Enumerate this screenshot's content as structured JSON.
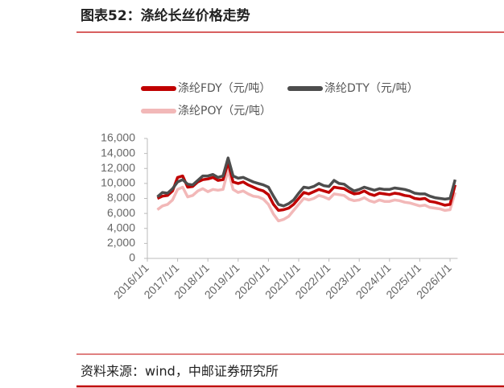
{
  "header": {
    "title": "图表52：涤纶长丝价格走势"
  },
  "chart_data": {
    "type": "line",
    "x": [
      "2016/5/1",
      "2016/7/1",
      "2016/9/1",
      "2016/11/1",
      "2017/1/1",
      "2017/3/1",
      "2017/5/1",
      "2017/7/1",
      "2017/9/1",
      "2017/11/1",
      "2018/1/1",
      "2018/3/1",
      "2018/5/1",
      "2018/7/1",
      "2018/9/1",
      "2018/11/1",
      "2019/1/1",
      "2019/3/1",
      "2019/5/1",
      "2019/7/1",
      "2019/9/1",
      "2019/11/1",
      "2020/1/1",
      "2020/3/1",
      "2020/5/1",
      "2020/7/1",
      "2020/9/1",
      "2020/11/1",
      "2021/1/1",
      "2021/3/1",
      "2021/5/1",
      "2021/7/1",
      "2021/9/1",
      "2021/11/1",
      "2022/1/1",
      "2022/3/1",
      "2022/5/1",
      "2022/7/1",
      "2022/9/1",
      "2022/11/1",
      "2023/1/1",
      "2023/3/1",
      "2023/5/1",
      "2023/7/1",
      "2023/9/1",
      "2023/11/1",
      "2024/1/1",
      "2024/3/1",
      "2024/5/1",
      "2024/7/1",
      "2024/9/1",
      "2024/11/1",
      "2025/1/1",
      "2025/3/1",
      "2025/5/1",
      "2025/7/1",
      "2025/9/1",
      "2025/11/1",
      "2026/1/1",
      "2026/3/1"
    ],
    "series": [
      {
        "name": "涤纶FDY（元/吨）",
        "color": "#c00000",
        "values": [
          8000,
          8300,
          8400,
          9000,
          10800,
          11000,
          9500,
          9600,
          10200,
          10500,
          10600,
          10800,
          10400,
          10500,
          12800,
          10200,
          10000,
          10200,
          9800,
          9500,
          9200,
          9000,
          8500,
          7200,
          6400,
          6500,
          6700,
          7200,
          8000,
          8800,
          8600,
          8900,
          9200,
          9000,
          8800,
          9500,
          9400,
          9300,
          8900,
          8600,
          8700,
          9000,
          8600,
          8400,
          8700,
          8600,
          8500,
          8700,
          8600,
          8400,
          8300,
          8000,
          7900,
          8000,
          7600,
          7500,
          7300,
          7100,
          7200,
          9800
        ]
      },
      {
        "name": "涤纶DTY（元/吨）",
        "color": "#4d4d4d",
        "values": [
          8200,
          8800,
          8700,
          9300,
          10200,
          10500,
          9900,
          9800,
          10400,
          11000,
          11000,
          11200,
          10800,
          11000,
          13400,
          11000,
          10700,
          10800,
          10500,
          10200,
          10000,
          9800,
          9500,
          8300,
          7200,
          7000,
          7300,
          7800,
          8700,
          9500,
          9400,
          9600,
          10000,
          9700,
          9600,
          10400,
          10000,
          9900,
          9400,
          9000,
          9200,
          9500,
          9300,
          9100,
          9300,
          9200,
          9200,
          9400,
          9300,
          9200,
          9000,
          8700,
          8600,
          8600,
          8300,
          8100,
          8000,
          7900,
          8000,
          10500
        ]
      },
      {
        "name": "涤纶POY（元/吨）",
        "color": "#f2b8b8",
        "values": [
          6500,
          7000,
          7200,
          7800,
          9200,
          9500,
          8200,
          8400,
          9000,
          9300,
          8900,
          9200,
          9100,
          9200,
          11800,
          9200,
          8800,
          9000,
          8600,
          8300,
          8200,
          7900,
          7200,
          5900,
          5000,
          5200,
          5600,
          6400,
          7200,
          8000,
          7800,
          8000,
          8400,
          8200,
          7900,
          8600,
          8500,
          8400,
          7900,
          7700,
          7800,
          8100,
          7700,
          7500,
          7800,
          7600,
          7600,
          7800,
          7700,
          7500,
          7400,
          7200,
          7000,
          7100,
          6800,
          6700,
          6600,
          6400,
          6500,
          8800
        ]
      }
    ],
    "xlim": [
      "2016/1/1",
      "2026/4/1"
    ],
    "xticks": [
      "2016/1/1",
      "2017/1/1",
      "2018/1/1",
      "2019/1/1",
      "2020/1/1",
      "2021/1/1",
      "2022/1/1",
      "2023/1/1",
      "2024/1/1",
      "2025/1/1",
      "2026/1/1"
    ],
    "ylim": [
      0,
      16000
    ],
    "yticks": [
      0,
      {
        "value": 2000,
        "label": "2,000"
      },
      {
        "value": 4000,
        "label": "4,000"
      },
      {
        "value": 6000,
        "label": "6,000"
      },
      {
        "value": 8000,
        "label": "8,000"
      },
      {
        "value": 10000,
        "label": "10,000"
      },
      {
        "value": 12000,
        "label": "12,000"
      },
      {
        "value": 14000,
        "label": "14,000"
      },
      {
        "value": 16000,
        "label": "16,000"
      }
    ],
    "legend": "upper-left"
  },
  "footer": {
    "source": "资料来源：wind，中邮证券研究所"
  }
}
